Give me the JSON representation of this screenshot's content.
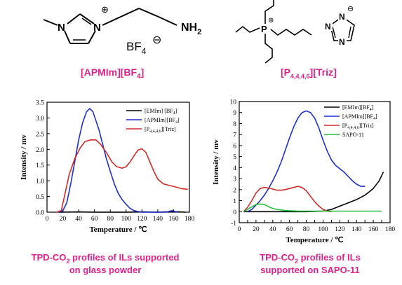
{
  "structures": {
    "left_cation_charge": "⊕",
    "left_amine": "NH",
    "left_amine_sub": "2",
    "left_anion": "BF",
    "left_anion_sub": "4",
    "left_anion_charge": "⊖",
    "left_nitrogen_1": "N",
    "left_nitrogen_2": "N",
    "right_P": "P",
    "right_P_charge": "⊕",
    "right_triazole_N1": "N",
    "right_triazole_N2": "N",
    "right_triazole_N3": "N",
    "right_triazole_charge": "⊖"
  },
  "names": {
    "left": "[APMIm][BF",
    "left_sub": "4",
    "left_end": "]",
    "right": "[P",
    "right_sub": "4,4,4,6",
    "right_end": "][Triz]"
  },
  "captions": {
    "left_line1": "TPD-CO",
    "left_line1_sub": "2",
    "left_line1_end": " profiles of ILs supported",
    "left_line2": "on glass powder",
    "right_line1": "TPD-CO",
    "right_line1_sub": "2",
    "right_line1_end": " profiles of ILs",
    "right_line2": "supported on SAPO-11"
  },
  "colors": {
    "caption": "#e0218a",
    "name": "#e0218a",
    "black_series": "#000000",
    "blue_series": "#1f2fd1",
    "red_series": "#d42a2a",
    "green_series": "#22c13a"
  },
  "chart_data": [
    {
      "type": "line",
      "xlabel": "Temperature / ℃",
      "ylabel": "Intensity / mv",
      "xlim": [
        0,
        180
      ],
      "ylim": [
        0,
        3.5
      ],
      "xticks": [
        "0",
        "20",
        "40",
        "60",
        "80",
        "100",
        "120",
        "140",
        "160",
        "180"
      ],
      "yticks": [
        "0.0",
        "0.5",
        "1.0",
        "1.5",
        "2.0",
        "2.5",
        "3.0",
        "3.5"
      ],
      "legend": "top-right",
      "series": [
        {
          "name": "[EMIm] [BF",
          "name_sub": "4",
          "name_end": "]",
          "color": "#000000",
          "points": [
            [
              15,
              0.0
            ],
            [
              40,
              0.01
            ],
            [
              60,
              0.0
            ],
            [
              80,
              0.0
            ],
            [
              100,
              0.0
            ],
            [
              120,
              0.01
            ],
            [
              140,
              0.0
            ],
            [
              160,
              0.02
            ],
            [
              175,
              0.0
            ]
          ]
        },
        {
          "name": "[APMIm][BF",
          "name_sub": "4",
          "name_end": "]",
          "color": "#1f2fd1",
          "points": [
            [
              15,
              0.0
            ],
            [
              20,
              0.05
            ],
            [
              25,
              0.3
            ],
            [
              30,
              0.9
            ],
            [
              35,
              1.6
            ],
            [
              40,
              2.3
            ],
            [
              45,
              2.85
            ],
            [
              50,
              3.2
            ],
            [
              54,
              3.3
            ],
            [
              58,
              3.2
            ],
            [
              62,
              2.9
            ],
            [
              66,
              2.6
            ],
            [
              70,
              2.2
            ],
            [
              75,
              1.7
            ],
            [
              80,
              1.3
            ],
            [
              85,
              0.9
            ],
            [
              90,
              0.6
            ],
            [
              95,
              0.4
            ],
            [
              100,
              0.25
            ],
            [
              105,
              0.12
            ],
            [
              110,
              0.05
            ],
            [
              115,
              0.02
            ],
            [
              120,
              0.0
            ],
            [
              130,
              0.0
            ],
            [
              140,
              0.0
            ],
            [
              150,
              0.0
            ],
            [
              158,
              0.05
            ],
            [
              165,
              0.0
            ]
          ]
        },
        {
          "name": "[P",
          "name_sub": "4,4,4,6",
          "name_end": "][Triz]",
          "color": "#d42a2a",
          "points": [
            [
              12,
              0.0
            ],
            [
              18,
              0.05
            ],
            [
              22,
              0.5
            ],
            [
              28,
              1.2
            ],
            [
              35,
              1.7
            ],
            [
              42,
              2.05
            ],
            [
              48,
              2.25
            ],
            [
              55,
              2.3
            ],
            [
              62,
              2.3
            ],
            [
              68,
              2.15
            ],
            [
              75,
              1.9
            ],
            [
              82,
              1.6
            ],
            [
              88,
              1.45
            ],
            [
              95,
              1.4
            ],
            [
              100,
              1.45
            ],
            [
              105,
              1.6
            ],
            [
              110,
              1.8
            ],
            [
              115,
              1.98
            ],
            [
              120,
              2.02
            ],
            [
              125,
              1.9
            ],
            [
              130,
              1.6
            ],
            [
              135,
              1.3
            ],
            [
              140,
              1.05
            ],
            [
              147,
              0.9
            ],
            [
              155,
              0.85
            ],
            [
              163,
              0.8
            ],
            [
              170,
              0.75
            ],
            [
              178,
              0.73
            ]
          ]
        }
      ]
    },
    {
      "type": "line",
      "xlabel": "Temperature / ℃",
      "ylabel": "Intensity / mv",
      "xlim": [
        0,
        180
      ],
      "ylim": [
        -1,
        10
      ],
      "xticks": [
        "0",
        "10",
        "20",
        "30",
        "40",
        "50",
        "60",
        "70",
        "80",
        "90",
        "100",
        "110",
        "120",
        "130",
        "140",
        "150",
        "160",
        "170",
        "180"
      ],
      "yticks": [
        "-1",
        "0",
        "1",
        "2",
        "3",
        "4",
        "5",
        "6",
        "7",
        "8",
        "9",
        "10"
      ],
      "legend": "top-right",
      "series": [
        {
          "name": "[EMIm][BF",
          "name_sub": "4",
          "name_end": "]",
          "color": "#000000",
          "points": [
            [
              5,
              0.0
            ],
            [
              20,
              0.0
            ],
            [
              40,
              0.0
            ],
            [
              60,
              0.0
            ],
            [
              80,
              0.0
            ],
            [
              100,
              0.05
            ],
            [
              110,
              0.2
            ],
            [
              120,
              0.5
            ],
            [
              130,
              0.8
            ],
            [
              140,
              1.1
            ],
            [
              150,
              1.5
            ],
            [
              160,
              2.1
            ],
            [
              167,
              2.8
            ],
            [
              172,
              3.6
            ]
          ]
        },
        {
          "name": "[APMIm][BF",
          "name_sub": "4",
          "name_end": "]",
          "color": "#1f2fd1",
          "points": [
            [
              10,
              0.0
            ],
            [
              15,
              0.2
            ],
            [
              20,
              0.6
            ],
            [
              25,
              1.0
            ],
            [
              30,
              1.5
            ],
            [
              35,
              2.1
            ],
            [
              40,
              2.8
            ],
            [
              45,
              3.6
            ],
            [
              50,
              4.5
            ],
            [
              55,
              5.6
            ],
            [
              60,
              6.7
            ],
            [
              65,
              7.7
            ],
            [
              70,
              8.5
            ],
            [
              75,
              9.0
            ],
            [
              80,
              9.15
            ],
            [
              85,
              9.0
            ],
            [
              90,
              8.5
            ],
            [
              95,
              7.6
            ],
            [
              100,
              6.5
            ],
            [
              105,
              5.5
            ],
            [
              110,
              4.7
            ],
            [
              115,
              4.2
            ],
            [
              120,
              3.9
            ],
            [
              125,
              3.6
            ],
            [
              130,
              3.2
            ],
            [
              135,
              2.8
            ],
            [
              140,
              2.5
            ],
            [
              145,
              2.3
            ],
            [
              150,
              2.3
            ]
          ]
        },
        {
          "name": "[P",
          "name_sub": "4,4,4,6",
          "name_end": "][Triz]",
          "color": "#d42a2a",
          "points": [
            [
              5,
              0.0
            ],
            [
              10,
              0.4
            ],
            [
              15,
              1.0
            ],
            [
              20,
              1.7
            ],
            [
              25,
              2.1
            ],
            [
              30,
              2.2
            ],
            [
              35,
              2.15
            ],
            [
              40,
              2.05
            ],
            [
              45,
              1.95
            ],
            [
              50,
              1.95
            ],
            [
              55,
              2.0
            ],
            [
              60,
              2.1
            ],
            [
              65,
              2.2
            ],
            [
              70,
              2.3
            ],
            [
              75,
              2.2
            ],
            [
              80,
              1.9
            ],
            [
              85,
              1.4
            ],
            [
              90,
              0.9
            ],
            [
              95,
              0.5
            ],
            [
              100,
              0.2
            ],
            [
              105,
              0.05
            ],
            [
              110,
              0.0
            ]
          ]
        },
        {
          "name": "SAPO-11",
          "color": "#22c13a",
          "points": [
            [
              5,
              0.0
            ],
            [
              10,
              0.2
            ],
            [
              15,
              0.45
            ],
            [
              20,
              0.65
            ],
            [
              25,
              0.7
            ],
            [
              30,
              0.65
            ],
            [
              35,
              0.45
            ],
            [
              40,
              0.3
            ],
            [
              45,
              0.2
            ],
            [
              55,
              0.1
            ],
            [
              70,
              0.05
            ],
            [
              90,
              0.05
            ],
            [
              110,
              0.05
            ],
            [
              130,
              0.05
            ],
            [
              150,
              0.05
            ],
            [
              170,
              0.05
            ]
          ]
        }
      ]
    }
  ]
}
